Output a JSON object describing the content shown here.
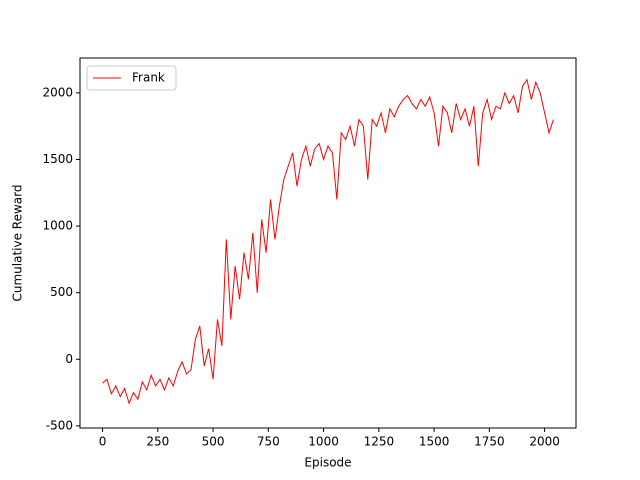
{
  "chart_data": {
    "type": "line",
    "xlabel": "Episode",
    "ylabel": "Cumulative Reward",
    "xlim": [
      -102,
      2142
    ],
    "ylim": [
      -516,
      2262
    ],
    "xticks": [
      0,
      250,
      500,
      750,
      1000,
      1250,
      1500,
      1750,
      2000
    ],
    "yticks": [
      -500,
      0,
      500,
      1000,
      1500,
      2000
    ],
    "legend": "upper left",
    "x": [
      0,
      20,
      40,
      60,
      80,
      100,
      120,
      140,
      160,
      180,
      200,
      220,
      240,
      260,
      280,
      300,
      320,
      340,
      360,
      380,
      400,
      420,
      440,
      460,
      480,
      500,
      520,
      540,
      560,
      580,
      600,
      620,
      640,
      660,
      680,
      700,
      720,
      740,
      760,
      780,
      800,
      820,
      840,
      860,
      880,
      900,
      920,
      940,
      960,
      980,
      1000,
      1020,
      1040,
      1060,
      1080,
      1100,
      1120,
      1140,
      1160,
      1180,
      1200,
      1220,
      1240,
      1260,
      1280,
      1300,
      1320,
      1340,
      1360,
      1380,
      1400,
      1420,
      1440,
      1460,
      1480,
      1500,
      1520,
      1540,
      1560,
      1580,
      1600,
      1620,
      1640,
      1660,
      1680,
      1700,
      1720,
      1740,
      1760,
      1780,
      1800,
      1820,
      1840,
      1860,
      1880,
      1900,
      1920,
      1940,
      1960,
      1980,
      2000,
      2020,
      2040
    ],
    "series": [
      {
        "name": "Frank",
        "color": "#ff0000",
        "values": [
          -180,
          -150,
          -260,
          -200,
          -280,
          -220,
          -330,
          -250,
          -300,
          -170,
          -230,
          -120,
          -200,
          -150,
          -230,
          -140,
          -200,
          -90,
          -20,
          -110,
          -80,
          150,
          250,
          -50,
          80,
          -150,
          300,
          100,
          900,
          300,
          700,
          450,
          800,
          600,
          950,
          500,
          1050,
          800,
          1200,
          900,
          1150,
          1350,
          1450,
          1550,
          1300,
          1500,
          1600,
          1450,
          1580,
          1620,
          1500,
          1600,
          1550,
          1200,
          1700,
          1650,
          1750,
          1600,
          1800,
          1750,
          1350,
          1800,
          1750,
          1850,
          1700,
          1880,
          1820,
          1900,
          1950,
          1980,
          1920,
          1880,
          1950,
          1900,
          1970,
          1850,
          1600,
          1900,
          1850,
          1700,
          1920,
          1800,
          1880,
          1750,
          1900,
          1450,
          1850,
          1950,
          1800,
          1900,
          1880,
          2000,
          1920,
          1980,
          1850,
          2050,
          2100,
          1950,
          2080,
          2000,
          1850,
          1700,
          1800
        ]
      }
    ]
  }
}
